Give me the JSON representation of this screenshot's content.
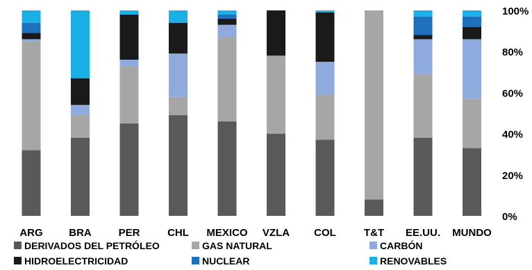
{
  "chart_data": {
    "type": "bar",
    "stacked": true,
    "percent": true,
    "categories": [
      "ARG",
      "BRA",
      "PER",
      "CHL",
      "MEXICO",
      "VZLA",
      "COL",
      "T&T",
      "EE.UU.",
      "MUNDO"
    ],
    "ylim": [
      0,
      100
    ],
    "yticks": [
      0,
      20,
      40,
      60,
      80,
      100
    ],
    "ytick_suffix": "%",
    "y_axis_side": "right",
    "grid": false,
    "legend_position": "bottom",
    "series": [
      {
        "name": "DERIVADOS DEL PETRÓLEO",
        "color": "#595959",
        "values": [
          32,
          38,
          45,
          49,
          46,
          40,
          37,
          8,
          38,
          33
        ]
      },
      {
        "name": "GAS NATURAL",
        "color": "#a6a6a6",
        "values": [
          53,
          11,
          28,
          9,
          41,
          38,
          22,
          92,
          31,
          24
        ]
      },
      {
        "name": "CARBÓN",
        "color": "#8faadc",
        "values": [
          1,
          5,
          3,
          21,
          6,
          0,
          16,
          0,
          17,
          29
        ]
      },
      {
        "name": "HIDROELECTRICIDAD",
        "color": "#1a1a1a",
        "values": [
          3,
          13,
          22,
          15,
          3,
          22,
          24,
          0,
          2,
          6
        ]
      },
      {
        "name": "NUCLEAR",
        "color": "#1f6fbf",
        "values": [
          5,
          0,
          0,
          0,
          2,
          0,
          0,
          0,
          9,
          5
        ]
      },
      {
        "name": "RENOVABLES",
        "color": "#1ab0e6",
        "values": [
          6,
          33,
          2,
          6,
          2,
          0,
          1,
          0,
          3,
          3
        ]
      }
    ]
  }
}
